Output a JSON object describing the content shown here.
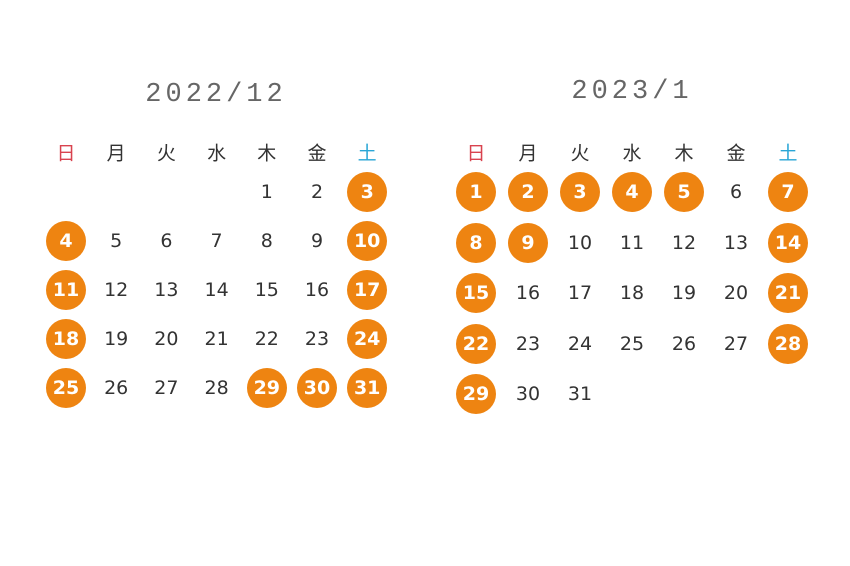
{
  "weekdays": [
    "日",
    "月",
    "火",
    "水",
    "木",
    "金",
    "土"
  ],
  "colors": {
    "holiday_circle": "#ee8411",
    "sunday": "#d9434f",
    "saturday": "#2aa6d6",
    "text": "#333333"
  },
  "calendars": [
    {
      "title": "2022/12",
      "weeks": [
        [
          null,
          null,
          null,
          null,
          1,
          2,
          3
        ],
        [
          4,
          5,
          6,
          7,
          8,
          9,
          10
        ],
        [
          11,
          12,
          13,
          14,
          15,
          16,
          17
        ],
        [
          18,
          19,
          20,
          21,
          22,
          23,
          24
        ],
        [
          25,
          26,
          27,
          28,
          29,
          30,
          31
        ]
      ],
      "highlighted": [
        3,
        4,
        10,
        11,
        17,
        18,
        24,
        25,
        29,
        30,
        31
      ]
    },
    {
      "title": "2023/1",
      "weeks": [
        [
          1,
          2,
          3,
          4,
          5,
          6,
          7
        ],
        [
          8,
          9,
          10,
          11,
          12,
          13,
          14
        ],
        [
          15,
          16,
          17,
          18,
          19,
          20,
          21
        ],
        [
          22,
          23,
          24,
          25,
          26,
          27,
          28
        ],
        [
          29,
          30,
          31,
          null,
          null,
          null,
          null
        ]
      ],
      "highlighted": [
        1,
        2,
        3,
        4,
        5,
        7,
        8,
        9,
        14,
        15,
        21,
        22,
        28,
        29
      ]
    }
  ]
}
